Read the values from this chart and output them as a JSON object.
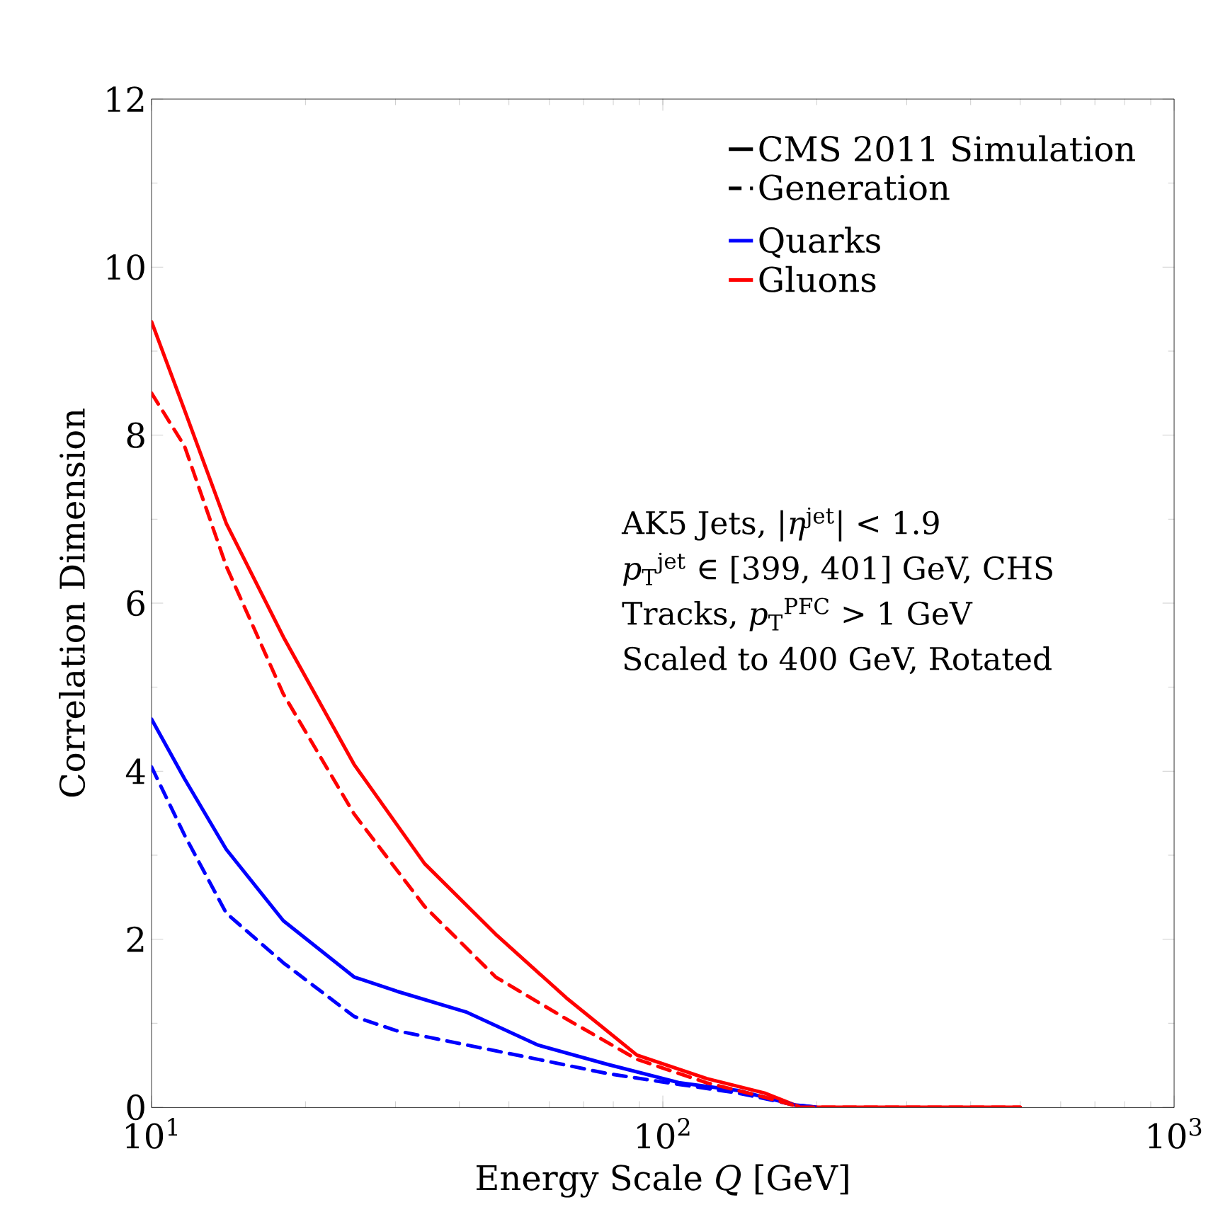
{
  "chart_data": {
    "type": "line",
    "xlabel": "Energy Scale *Q* [GeV]",
    "ylabel": "Correlation Dimension",
    "log": "x",
    "grid": false,
    "legend": "top right",
    "marker": "none",
    "xlim": [
      10,
      1000
    ],
    "xticks": [
      {
        "value": 10,
        "label": "10$^{1}$"
      },
      {
        "value": 100,
        "label": "10$^{2}$"
      },
      {
        "value": 1000,
        "label": "10$^{3}$"
      }
    ],
    "ylim": [
      0,
      12
    ],
    "yticks": [
      0,
      2,
      4,
      6,
      8,
      10,
      12
    ],
    "annotations": [
      "CMS 2011 Simulation",
      "Generation",
      "AK5 Jets, |*η*$^{jet}$| < 1.9",
      "*p*$_{T}$$^{jet}$ ∈ [399, 401] GeV, CHS",
      "Tracks, *p*$_{T}$$^{PFC}$ > 1 GeV",
      "Scaled to 400 GeV, Rotated"
    ],
    "series": [
      {
        "name": "Quarks",
        "color": "#0000ff",
        "line_style": "solid",
        "x": [
          10,
          11.6,
          14,
          18.1,
          24.9,
          30.2,
          41.4,
          57,
          78,
          108,
          140,
          180,
          200
        ],
        "values": [
          4.62,
          3.91,
          3.07,
          2.22,
          1.55,
          1.38,
          1.13,
          0.74,
          0.51,
          0.29,
          0.2,
          0.03,
          0
        ]
      },
      {
        "name": "Gluons",
        "color": "#ff0000",
        "line_style": "solid",
        "x": [
          10,
          11.6,
          14,
          18.1,
          24.9,
          34.2,
          47.1,
          64.8,
          89,
          122,
          158,
          186,
          500
        ],
        "values": [
          9.35,
          8.3,
          6.95,
          5.6,
          4.08,
          2.9,
          2.06,
          1.3,
          0.62,
          0.34,
          0.17,
          0,
          0
        ]
      },
      {
        "color": "#0000ff",
        "line_style": "dashed",
        "x": [
          10,
          11.6,
          14,
          18.1,
          24.9,
          30.2,
          41.4,
          57,
          78,
          108,
          140,
          180,
          200
        ],
        "values": [
          4.05,
          3.24,
          2.31,
          1.72,
          1.08,
          0.91,
          0.74,
          0.57,
          0.4,
          0.27,
          0.17,
          0.03,
          0
        ]
      },
      {
        "color": "#ff0000",
        "line_style": "dashed",
        "x": [
          10,
          11.6,
          14,
          18.1,
          24.9,
          34.2,
          47.1,
          64.8,
          89,
          122,
          158,
          186,
          500
        ],
        "values": [
          8.5,
          7.87,
          6.44,
          4.92,
          3.49,
          2.39,
          1.55,
          1.05,
          0.57,
          0.29,
          0.12,
          0,
          0
        ]
      }
    ]
  }
}
